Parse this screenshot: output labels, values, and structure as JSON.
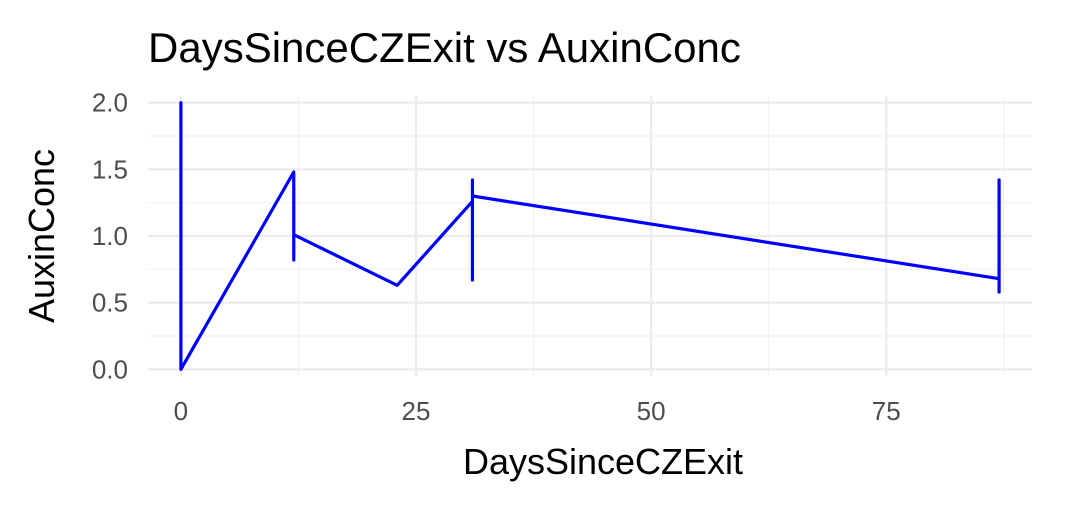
{
  "chart_data": {
    "type": "line",
    "title": "DaysSinceCZExit vs AuxinConc",
    "xlabel": "DaysSinceCZExit",
    "ylabel": "AuxinConc",
    "xlim": [
      -3.5,
      90.5
    ],
    "ylim": [
      -0.05,
      2.05
    ],
    "x_ticks": [
      0,
      25,
      50,
      75
    ],
    "x_tick_labels": [
      "0",
      "25",
      "50",
      "75"
    ],
    "x_minor_ticks": [
      12.5,
      37.5,
      62.5,
      87.5
    ],
    "y_ticks": [
      0,
      0.5,
      1,
      1.5,
      2
    ],
    "y_tick_labels": [
      "0.0",
      "0.5",
      "1.0",
      "1.5",
      "2.0"
    ],
    "y_minor_ticks": [
      0.25,
      0.75,
      1.25,
      1.75
    ],
    "grid": true,
    "legend": "none",
    "series": [
      {
        "color": "#0000ff",
        "x": [
          0,
          0,
          0,
          12,
          12,
          12,
          23,
          31,
          31,
          31,
          31,
          87,
          87,
          87,
          87
        ],
        "y": [
          2.0,
          1.5,
          0.0,
          1.48,
          0.82,
          1.01,
          0.63,
          1.26,
          1.42,
          0.67,
          1.3,
          0.68,
          1.42,
          0.58,
          0.85
        ]
      }
    ]
  }
}
